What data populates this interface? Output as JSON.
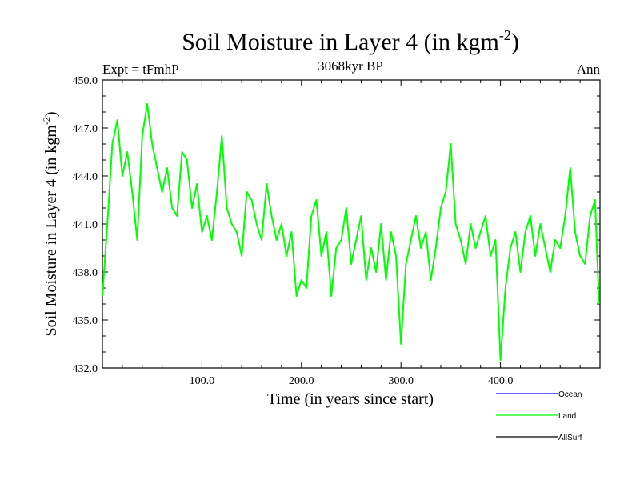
{
  "chart_data": {
    "type": "line",
    "title_main": "Soil Moisture in Layer 4 (in kgm",
    "title_sup": "-2",
    "title_close": ")",
    "subtitle": "3068kyr BP",
    "left_label": "Expt = tFmhP",
    "right_label": "Ann",
    "xlabel": "Time (in years since start)",
    "ylabel_main": "Soil Moisture in Layer 4 (in kgm",
    "ylabel_sup": "-2",
    "ylabel_close": ")",
    "xlim": [
      0,
      500
    ],
    "ylim": [
      432,
      450
    ],
    "x_ticks": [
      100,
      200,
      300,
      400
    ],
    "x_tick_labels": [
      "100.0",
      "200.0",
      "300.0",
      "400.0"
    ],
    "y_ticks": [
      432,
      435,
      438,
      441,
      444,
      447,
      450
    ],
    "y_tick_labels": [
      "432.0",
      "435.0",
      "438.0",
      "441.0",
      "444.0",
      "447.0",
      "450.0"
    ],
    "legend": [
      {
        "name": "Ocean",
        "color": "#0000ff"
      },
      {
        "name": "Land",
        "color": "#00ff00"
      },
      {
        "name": "AllSurf",
        "color": "#000000"
      }
    ],
    "series": [
      {
        "name": "Land",
        "color": "#00ff00",
        "x": [
          0,
          5,
          10,
          15,
          20,
          25,
          30,
          35,
          40,
          45,
          50,
          55,
          60,
          65,
          70,
          75,
          80,
          85,
          90,
          95,
          100,
          105,
          110,
          115,
          120,
          125,
          130,
          135,
          140,
          145,
          150,
          155,
          160,
          165,
          170,
          175,
          180,
          185,
          190,
          195,
          200,
          205,
          210,
          215,
          220,
          225,
          230,
          235,
          240,
          245,
          250,
          255,
          260,
          265,
          270,
          275,
          280,
          285,
          290,
          295,
          300,
          305,
          310,
          315,
          320,
          325,
          330,
          335,
          340,
          345,
          350,
          355,
          360,
          365,
          370,
          375,
          380,
          385,
          390,
          395,
          400,
          405,
          410,
          415,
          420,
          425,
          430,
          435,
          440,
          445,
          450,
          455,
          460,
          465,
          470,
          475,
          480,
          485,
          490,
          495,
          499
        ],
        "values": [
          436.5,
          441.0,
          446.0,
          447.5,
          444.0,
          445.5,
          443.0,
          440.0,
          446.5,
          448.5,
          446.0,
          444.5,
          443.0,
          444.5,
          442.0,
          441.5,
          445.5,
          445.0,
          442.0,
          443.5,
          440.5,
          441.5,
          440.0,
          443.0,
          446.5,
          442.0,
          441.0,
          440.5,
          439.0,
          443.0,
          442.5,
          441.0,
          440.0,
          443.5,
          441.5,
          440.0,
          441.0,
          439.0,
          440.5,
          436.5,
          437.5,
          437.0,
          441.5,
          442.5,
          439.0,
          440.5,
          436.5,
          439.5,
          440.0,
          442.0,
          438.5,
          440.0,
          441.5,
          437.5,
          439.5,
          438.0,
          441.0,
          437.5,
          440.5,
          439.0,
          433.5,
          438.5,
          440.0,
          441.5,
          439.5,
          440.5,
          437.5,
          439.5,
          442.0,
          443.0,
          446.0,
          441.0,
          440.0,
          438.5,
          441.0,
          439.5,
          440.5,
          441.5,
          439.0,
          440.0,
          432.5,
          437.0,
          439.5,
          440.5,
          438.0,
          440.5,
          441.5,
          439.0,
          441.0,
          439.5,
          438.0,
          440.0,
          439.5,
          441.5,
          444.5,
          440.5,
          439.0,
          438.5,
          441.5,
          442.5,
          436.0
        ]
      }
    ]
  }
}
